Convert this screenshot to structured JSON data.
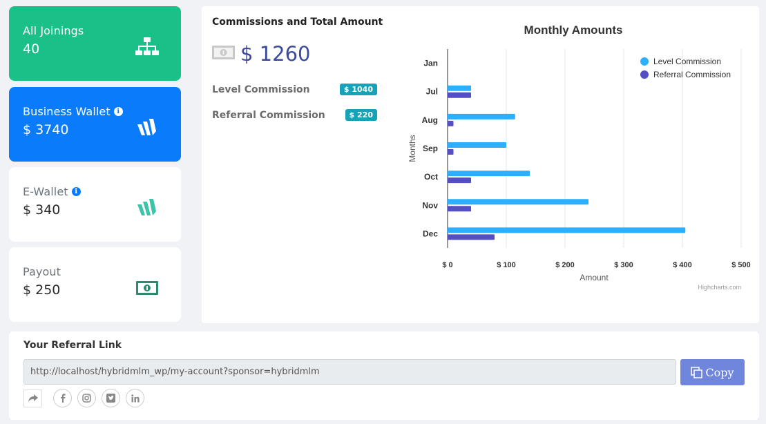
{
  "stats": {
    "joinings": {
      "label": "All Joinings",
      "value": "40",
      "icon": "sitemap-icon"
    },
    "business": {
      "label": "Business Wallet",
      "value": "$ 3740",
      "icon": "wallet-w-icon"
    },
    "ewallet": {
      "label": "E-Wallet",
      "value": "$ 340",
      "icon": "wallet-w-icon"
    },
    "payout": {
      "label": "Payout",
      "value": "$ 250",
      "icon": "money-icon"
    }
  },
  "commissions": {
    "title": "Commissions and Total Amount",
    "total": "$ 1260",
    "level_label": "Level Commission",
    "level_value": "$ 1040",
    "referral_label": "Referral Commission",
    "referral_value": "$ 220"
  },
  "chart_data": {
    "type": "bar",
    "orientation": "horizontal",
    "title": "Monthly Amounts",
    "xlabel": "Months",
    "ylabel": "Amount",
    "categories": [
      "Jan",
      "Jul",
      "Aug",
      "Sep",
      "Oct",
      "Nov",
      "Dec"
    ],
    "series": [
      {
        "name": "Level Commission",
        "color": "#2caffe",
        "values": [
          0,
          40,
          115,
          100,
          140,
          240,
          405
        ]
      },
      {
        "name": "Referral Commission",
        "color": "#544fc5",
        "values": [
          0,
          40,
          10,
          10,
          40,
          40,
          80
        ]
      }
    ],
    "ticks": [
      "$ 0",
      "$ 100",
      "$ 200",
      "$ 300",
      "$ 400",
      "$ 500"
    ],
    "tick_values": [
      0,
      100,
      200,
      300,
      400,
      500
    ],
    "ylim": [
      0,
      500
    ],
    "legend": "top-right",
    "credits": "Highcharts.com"
  },
  "referral": {
    "title": "Your Referral Link",
    "link": "http://localhost/hybridmlm_wp/my-account?sponsor=hybridmlm",
    "copy_label": "Copy"
  },
  "colors": {
    "green": "#1bc088",
    "blue": "#0a7cfb",
    "teal_icon": "#3cc3a8",
    "badge": "#17a2b8"
  }
}
